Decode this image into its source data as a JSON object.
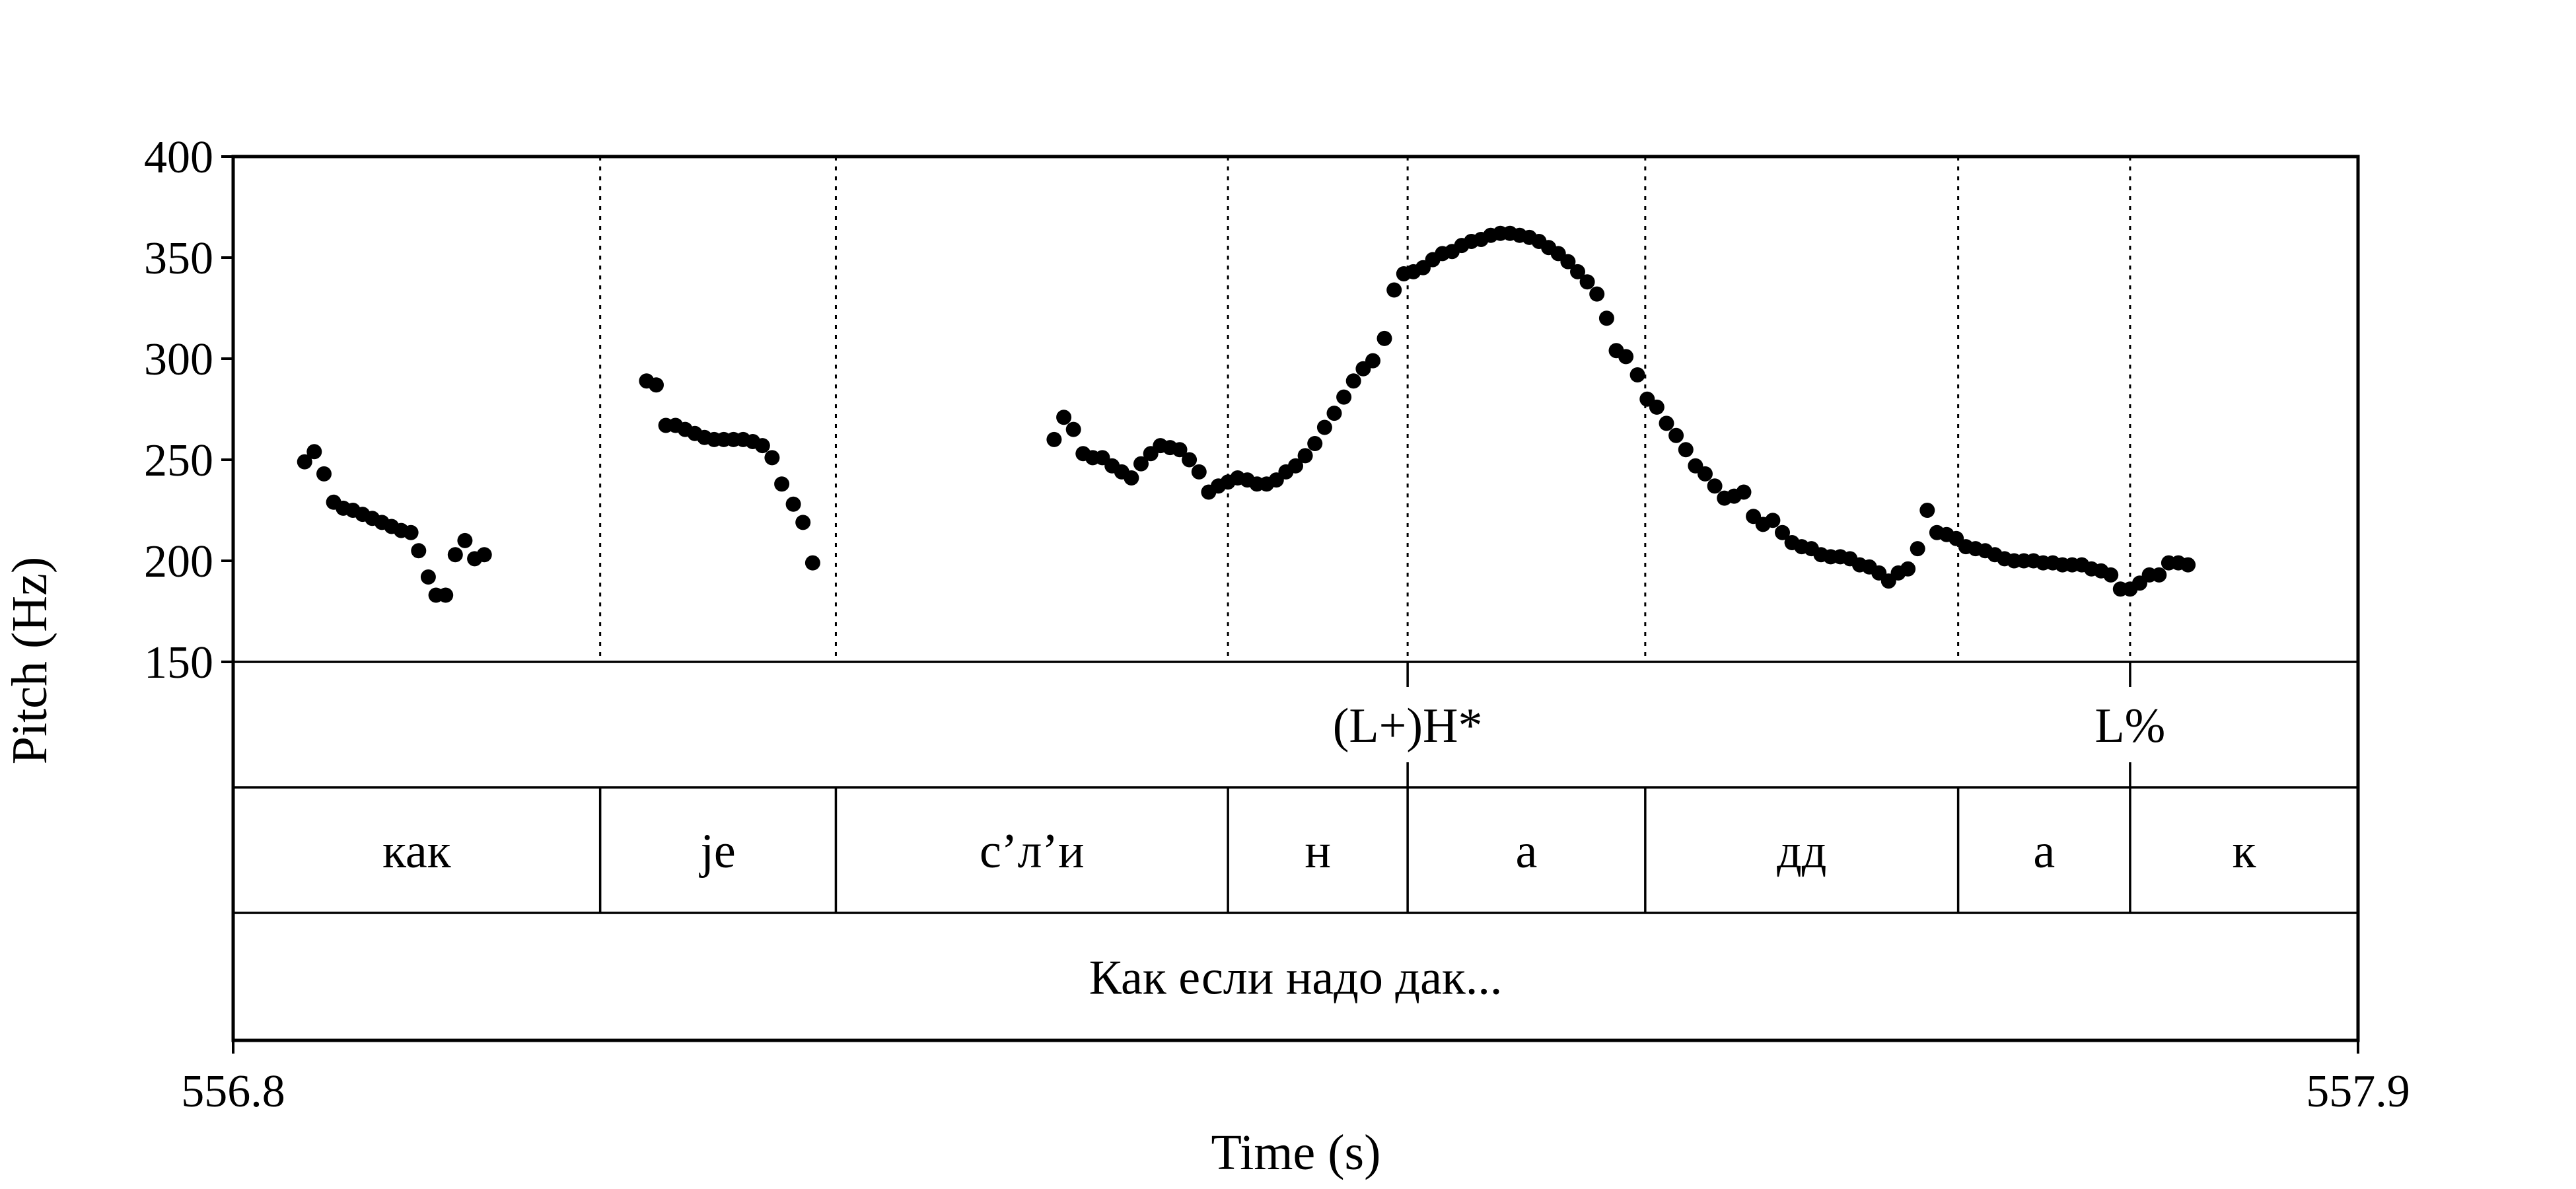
{
  "chart_data": {
    "type": "scatter",
    "title": "",
    "xlabel": "Time (s)",
    "ylabel": "Pitch (Hz)",
    "xlim": [
      556.8,
      557.9
    ],
    "ylim": [
      150,
      400
    ],
    "x_ticks": [
      "556.8",
      "557.9"
    ],
    "y_ticks": [
      "150",
      "200",
      "250",
      "300",
      "350",
      "400"
    ],
    "grid": false,
    "boundaries": [
      556.99,
      557.112,
      557.315,
      557.408,
      557.531,
      557.693,
      557.782
    ],
    "tiers": [
      {
        "name": "tones",
        "intervals": [
          {
            "label": "(L+)H*",
            "center": 557.408
          },
          {
            "label": "L%",
            "center": 557.782
          }
        ]
      },
      {
        "name": "words",
        "intervals": [
          {
            "label": "как",
            "start": 556.8,
            "end": 556.99
          },
          {
            "label": "je",
            "start": 556.99,
            "end": 557.112
          },
          {
            "label": "с’л’и",
            "start": 557.112,
            "end": 557.315
          },
          {
            "label": "н",
            "start": 557.315,
            "end": 557.408
          },
          {
            "label": "а",
            "start": 557.408,
            "end": 557.531
          },
          {
            "label": "дд",
            "start": 557.531,
            "end": 557.693
          },
          {
            "label": "а",
            "start": 557.693,
            "end": 557.782
          },
          {
            "label": "к",
            "start": 557.782,
            "end": 557.9
          }
        ]
      },
      {
        "name": "sentence",
        "intervals": [
          {
            "label": "Как если надо дак...",
            "start": 556.8,
            "end": 557.9
          }
        ]
      }
    ],
    "series": [
      {
        "values": [
          [
            556.837,
            249
          ],
          [
            556.842,
            254
          ],
          [
            556.847,
            243
          ],
          [
            556.852,
            229
          ],
          [
            556.857,
            226
          ],
          [
            556.862,
            225
          ],
          [
            556.867,
            223
          ],
          [
            556.872,
            221
          ],
          [
            556.877,
            219
          ],
          [
            556.882,
            217
          ],
          [
            556.887,
            215
          ],
          [
            556.892,
            214
          ],
          [
            556.896,
            205
          ],
          [
            556.901,
            192
          ],
          [
            556.905,
            183
          ],
          [
            556.91,
            183
          ],
          [
            556.915,
            203
          ],
          [
            556.92,
            210
          ],
          [
            556.925,
            201
          ],
          [
            556.93,
            203
          ],
          [
            557.014,
            289
          ],
          [
            557.019,
            287
          ],
          [
            557.024,
            267
          ],
          [
            557.029,
            267
          ],
          [
            557.034,
            265
          ],
          [
            557.039,
            263
          ],
          [
            557.044,
            261
          ],
          [
            557.049,
            260
          ],
          [
            557.054,
            260
          ],
          [
            557.059,
            260
          ],
          [
            557.064,
            260
          ],
          [
            557.069,
            259
          ],
          [
            557.074,
            257
          ],
          [
            557.079,
            251
          ],
          [
            557.084,
            238
          ],
          [
            557.09,
            228
          ],
          [
            557.095,
            219
          ],
          [
            557.1,
            199
          ],
          [
            557.225,
            260
          ],
          [
            557.23,
            271
          ],
          [
            557.235,
            265
          ],
          [
            557.24,
            253
          ],
          [
            557.245,
            251
          ],
          [
            557.25,
            251
          ],
          [
            557.255,
            247
          ],
          [
            557.26,
            244
          ],
          [
            557.265,
            241
          ],
          [
            557.27,
            248
          ],
          [
            557.275,
            253
          ],
          [
            557.28,
            257
          ],
          [
            557.285,
            256
          ],
          [
            557.29,
            255
          ],
          [
            557.295,
            250
          ],
          [
            557.3,
            244
          ],
          [
            557.305,
            234
          ],
          [
            557.31,
            237
          ],
          [
            557.315,
            239
          ],
          [
            557.32,
            241
          ],
          [
            557.325,
            240
          ],
          [
            557.33,
            238
          ],
          [
            557.335,
            238
          ],
          [
            557.34,
            240
          ],
          [
            557.345,
            244
          ],
          [
            557.35,
            247
          ],
          [
            557.355,
            252
          ],
          [
            557.36,
            258
          ],
          [
            557.365,
            266
          ],
          [
            557.37,
            273
          ],
          [
            557.375,
            281
          ],
          [
            557.38,
            289
          ],
          [
            557.385,
            295
          ],
          [
            557.39,
            299
          ],
          [
            557.396,
            310
          ],
          [
            557.401,
            334
          ],
          [
            557.406,
            342
          ],
          [
            557.411,
            343
          ],
          [
            557.416,
            345
          ],
          [
            557.421,
            349
          ],
          [
            557.426,
            352
          ],
          [
            557.431,
            353
          ],
          [
            557.436,
            356
          ],
          [
            557.441,
            358
          ],
          [
            557.446,
            359
          ],
          [
            557.451,
            361
          ],
          [
            557.456,
            362
          ],
          [
            557.461,
            362
          ],
          [
            557.466,
            361
          ],
          [
            557.471,
            360
          ],
          [
            557.476,
            358
          ],
          [
            557.481,
            355
          ],
          [
            557.486,
            352
          ],
          [
            557.491,
            348
          ],
          [
            557.496,
            343
          ],
          [
            557.501,
            338
          ],
          [
            557.506,
            332
          ],
          [
            557.511,
            320
          ],
          [
            557.516,
            304
          ],
          [
            557.521,
            301
          ],
          [
            557.527,
            292
          ],
          [
            557.532,
            280
          ],
          [
            557.537,
            276
          ],
          [
            557.542,
            268
          ],
          [
            557.547,
            262
          ],
          [
            557.552,
            255
          ],
          [
            557.557,
            247
          ],
          [
            557.562,
            243
          ],
          [
            557.567,
            237
          ],
          [
            557.572,
            231
          ],
          [
            557.577,
            232
          ],
          [
            557.582,
            234
          ],
          [
            557.587,
            222
          ],
          [
            557.592,
            218
          ],
          [
            557.597,
            220
          ],
          [
            557.602,
            214
          ],
          [
            557.607,
            209
          ],
          [
            557.612,
            207
          ],
          [
            557.617,
            206
          ],
          [
            557.622,
            203
          ],
          [
            557.627,
            202
          ],
          [
            557.632,
            202
          ],
          [
            557.637,
            201
          ],
          [
            557.642,
            198
          ],
          [
            557.647,
            197
          ],
          [
            557.652,
            194
          ],
          [
            557.657,
            190
          ],
          [
            557.662,
            194
          ],
          [
            557.667,
            196
          ],
          [
            557.672,
            206
          ],
          [
            557.677,
            225
          ],
          [
            557.682,
            214
          ],
          [
            557.687,
            213
          ],
          [
            557.692,
            211
          ],
          [
            557.697,
            207
          ],
          [
            557.702,
            206
          ],
          [
            557.707,
            205
          ],
          [
            557.712,
            203
          ],
          [
            557.717,
            201
          ],
          [
            557.722,
            200
          ],
          [
            557.727,
            200
          ],
          [
            557.732,
            200
          ],
          [
            557.737,
            199
          ],
          [
            557.742,
            199
          ],
          [
            557.747,
            198
          ],
          [
            557.752,
            198
          ],
          [
            557.757,
            198
          ],
          [
            557.762,
            196
          ],
          [
            557.767,
            195
          ],
          [
            557.772,
            193
          ],
          [
            557.777,
            186
          ],
          [
            557.782,
            186
          ],
          [
            557.787,
            189
          ],
          [
            557.792,
            193
          ],
          [
            557.797,
            193
          ],
          [
            557.802,
            199
          ],
          [
            557.807,
            199
          ],
          [
            557.812,
            198
          ]
        ]
      }
    ]
  }
}
